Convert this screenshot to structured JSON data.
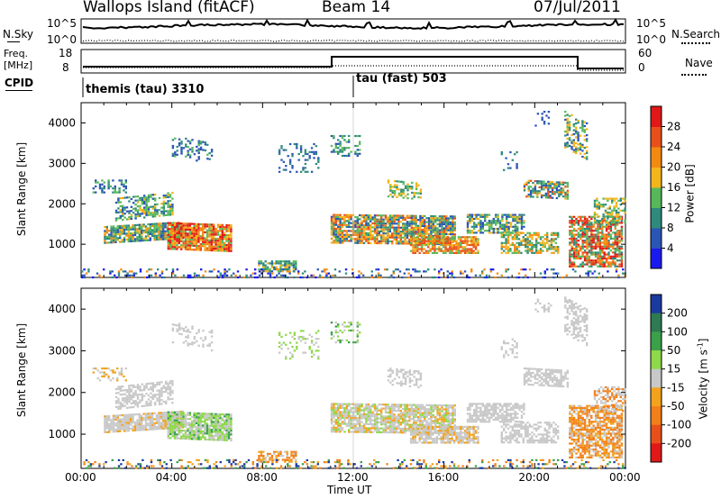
{
  "header": {
    "station": "Wallops Island (fitACF)",
    "beam": "Beam 14",
    "date": "07/Jul/2011"
  },
  "top_panels": {
    "nsky_label": "N.Sky",
    "nsky_top": "10^5",
    "nsky_bottom": "10^0",
    "nsearch_top": "10^5",
    "nsearch_bottom": "10^0",
    "nsearch_label": "N.Search",
    "freq_label_1": "Freq.",
    "freq_label_2": "[MHz]",
    "freq_top": "18",
    "freq_bottom": "8",
    "nave_top": "60",
    "nave_bottom": "0",
    "nave_label": "Nave",
    "cpid_label": "CPID",
    "cpid_1": "themis (tau) 3310",
    "cpid_2": "tau (fast) 503"
  },
  "chart_data": [
    {
      "type": "heatmap",
      "title": "Power",
      "ylabel": "Slant Range [km]",
      "xlabel": "",
      "ylim": [
        180,
        4500
      ],
      "yticks": [
        "1000",
        "2000",
        "3000",
        "4000"
      ],
      "colorbar": {
        "label": "Power [dB]",
        "ticks": [
          "4",
          "8",
          "12",
          "16",
          "20",
          "24",
          "28"
        ],
        "colors": [
          "#1a1aee",
          "#2a55b5",
          "#2e8a7a",
          "#57b85a",
          "#f2b51c",
          "#f28a12",
          "#e8501a",
          "#e01818"
        ]
      }
    },
    {
      "type": "heatmap",
      "title": "Velocity",
      "ylabel": "Slant Range [km]",
      "xlabel": "Time UT",
      "ylim": [
        180,
        4500
      ],
      "yticks": [
        "1000",
        "2000",
        "3000",
        "4000"
      ],
      "xticks": [
        "00:00",
        "04:00",
        "08:00",
        "12:00",
        "16:00",
        "20:00",
        "00:00"
      ],
      "colorbar": {
        "label_main": "Velocity [m s",
        "label_exp": "-1",
        "label_end": "]",
        "ticks": [
          "200",
          "100",
          "50",
          "15",
          "-15",
          "-50",
          "-100",
          "-200"
        ],
        "colors": [
          "#1a3aa0",
          "#2e7a52",
          "#3aa04a",
          "#8ed84a",
          "#c8c8c8",
          "#f2a21c",
          "#f27f1a",
          "#e8501a",
          "#e01818"
        ]
      }
    }
  ]
}
